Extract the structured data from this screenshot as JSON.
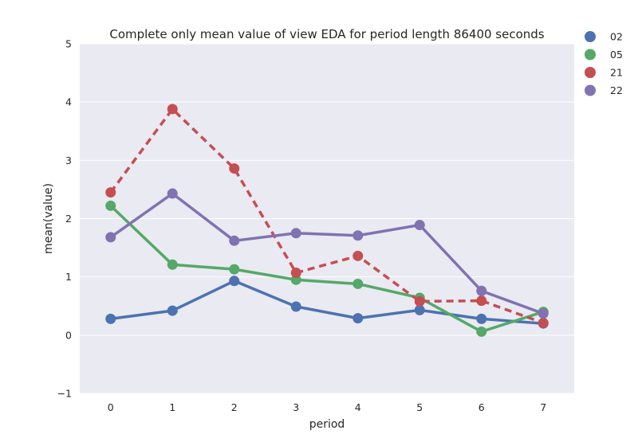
{
  "chart_data": {
    "type": "line",
    "title": "Complete only mean value of view EDA for period length 86400 seconds",
    "xlabel": "period",
    "ylabel": "mean(value)",
    "categories": [
      "0",
      "1",
      "2",
      "3",
      "4",
      "5",
      "6",
      "7"
    ],
    "ylim": [
      -1,
      5
    ],
    "yticks": [
      "−1",
      "0",
      "1",
      "2",
      "3",
      "4",
      "5"
    ],
    "grid": true,
    "legend_position": "right-outside",
    "series": [
      {
        "name": "02",
        "color": "#4C72B0",
        "dashed": false,
        "values": [
          0.28,
          0.42,
          0.93,
          0.49,
          0.29,
          0.43,
          0.28,
          0.2
        ]
      },
      {
        "name": "05",
        "color": "#55A868",
        "dashed": false,
        "values": [
          2.22,
          1.21,
          1.13,
          0.95,
          0.88,
          0.64,
          0.06,
          0.4
        ]
      },
      {
        "name": "21",
        "color": "#C44E52",
        "dashed": true,
        "values": [
          2.45,
          3.88,
          2.86,
          1.07,
          1.36,
          0.58,
          0.59,
          0.21
        ]
      },
      {
        "name": "22",
        "color": "#8172B2",
        "dashed": false,
        "values": [
          1.68,
          2.43,
          1.62,
          1.75,
          1.71,
          1.89,
          0.76,
          0.37
        ]
      }
    ]
  }
}
